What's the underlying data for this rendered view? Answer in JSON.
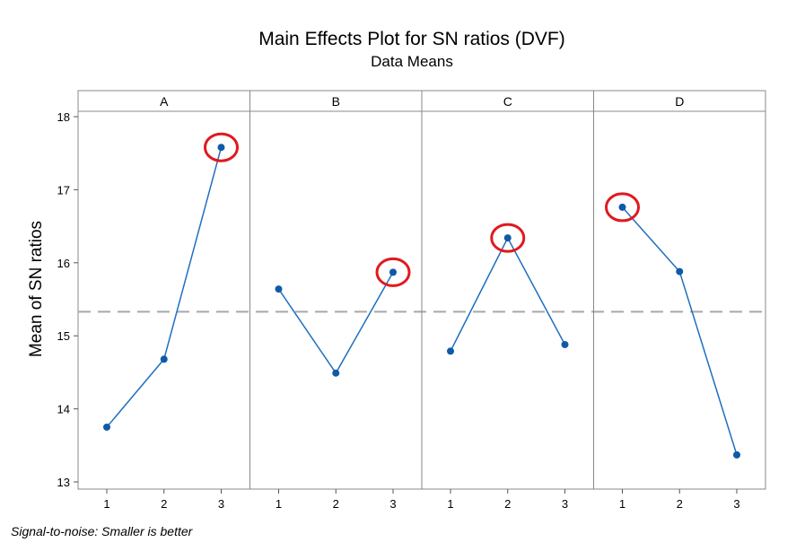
{
  "chart_data": {
    "type": "line",
    "title": "Main Effects Plot for SN ratios (DVF)",
    "subtitle": "Data Means",
    "ylabel": "Mean of SN ratios",
    "ylim": [
      12.95,
      18.2
    ],
    "yticks": [
      13,
      14,
      15,
      16,
      17,
      18
    ],
    "reference_line": 15.33,
    "grid": false,
    "panels": [
      {
        "name": "A",
        "categories": [
          "1",
          "2",
          "3"
        ],
        "values": [
          13.75,
          14.68,
          17.58
        ],
        "highlight_index": 2
      },
      {
        "name": "B",
        "categories": [
          "1",
          "2",
          "3"
        ],
        "values": [
          15.64,
          14.49,
          15.87
        ],
        "highlight_index": 2
      },
      {
        "name": "C",
        "categories": [
          "1",
          "2",
          "3"
        ],
        "values": [
          14.79,
          16.34,
          14.88
        ],
        "highlight_index": 1
      },
      {
        "name": "D",
        "categories": [
          "1",
          "2",
          "3"
        ],
        "values": [
          16.76,
          15.88,
          13.37
        ],
        "highlight_index": 0
      }
    ],
    "footnote": "Signal-to-noise: Smaller is better",
    "colors": {
      "line": "#1f6fbf",
      "marker": "#0f5aa8",
      "highlight": "#e0191e",
      "reference": "#a8a8a8",
      "panel_header_bg": "#ffffff",
      "border": "#888888"
    }
  }
}
